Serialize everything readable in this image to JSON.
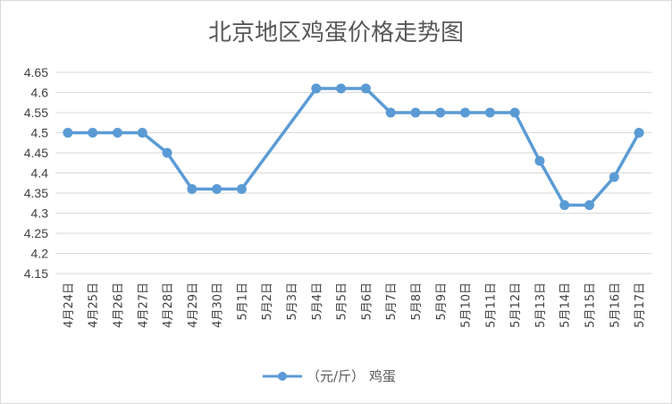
{
  "chart_data": {
    "type": "line",
    "title": "北京地区鸡蛋价格走势图",
    "xlabel": "",
    "ylabel": "",
    "ylim": [
      4.15,
      4.65
    ],
    "y_ticks": [
      "4.15",
      "4.2",
      "4.25",
      "4.3",
      "4.35",
      "4.4",
      "4.45",
      "4.5",
      "4.55",
      "4.6",
      "4.65"
    ],
    "grid": true,
    "legend_position": "bottom",
    "categories": [
      "4月24日",
      "4月25日",
      "4月26日",
      "4月27日",
      "4月28日",
      "4月29日",
      "4月30日",
      "5月1日",
      "5月2日",
      "5月3日",
      "5月4日",
      "5月5日",
      "5月6日",
      "5月7日",
      "5月8日",
      "5月9日",
      "5月10日",
      "5月11日",
      "5月12日",
      "5月13日",
      "5月14日",
      "5月15日",
      "5月16日",
      "5月17日"
    ],
    "series": [
      {
        "name": "（元/斤） 鸡蛋",
        "color": "#5b9bd5",
        "values": [
          4.5,
          4.5,
          4.5,
          4.5,
          4.45,
          4.36,
          4.36,
          4.36,
          null,
          null,
          4.61,
          4.61,
          4.61,
          4.55,
          4.55,
          4.55,
          4.55,
          4.55,
          4.55,
          4.43,
          4.32,
          4.32,
          4.39,
          4.5
        ]
      }
    ]
  }
}
